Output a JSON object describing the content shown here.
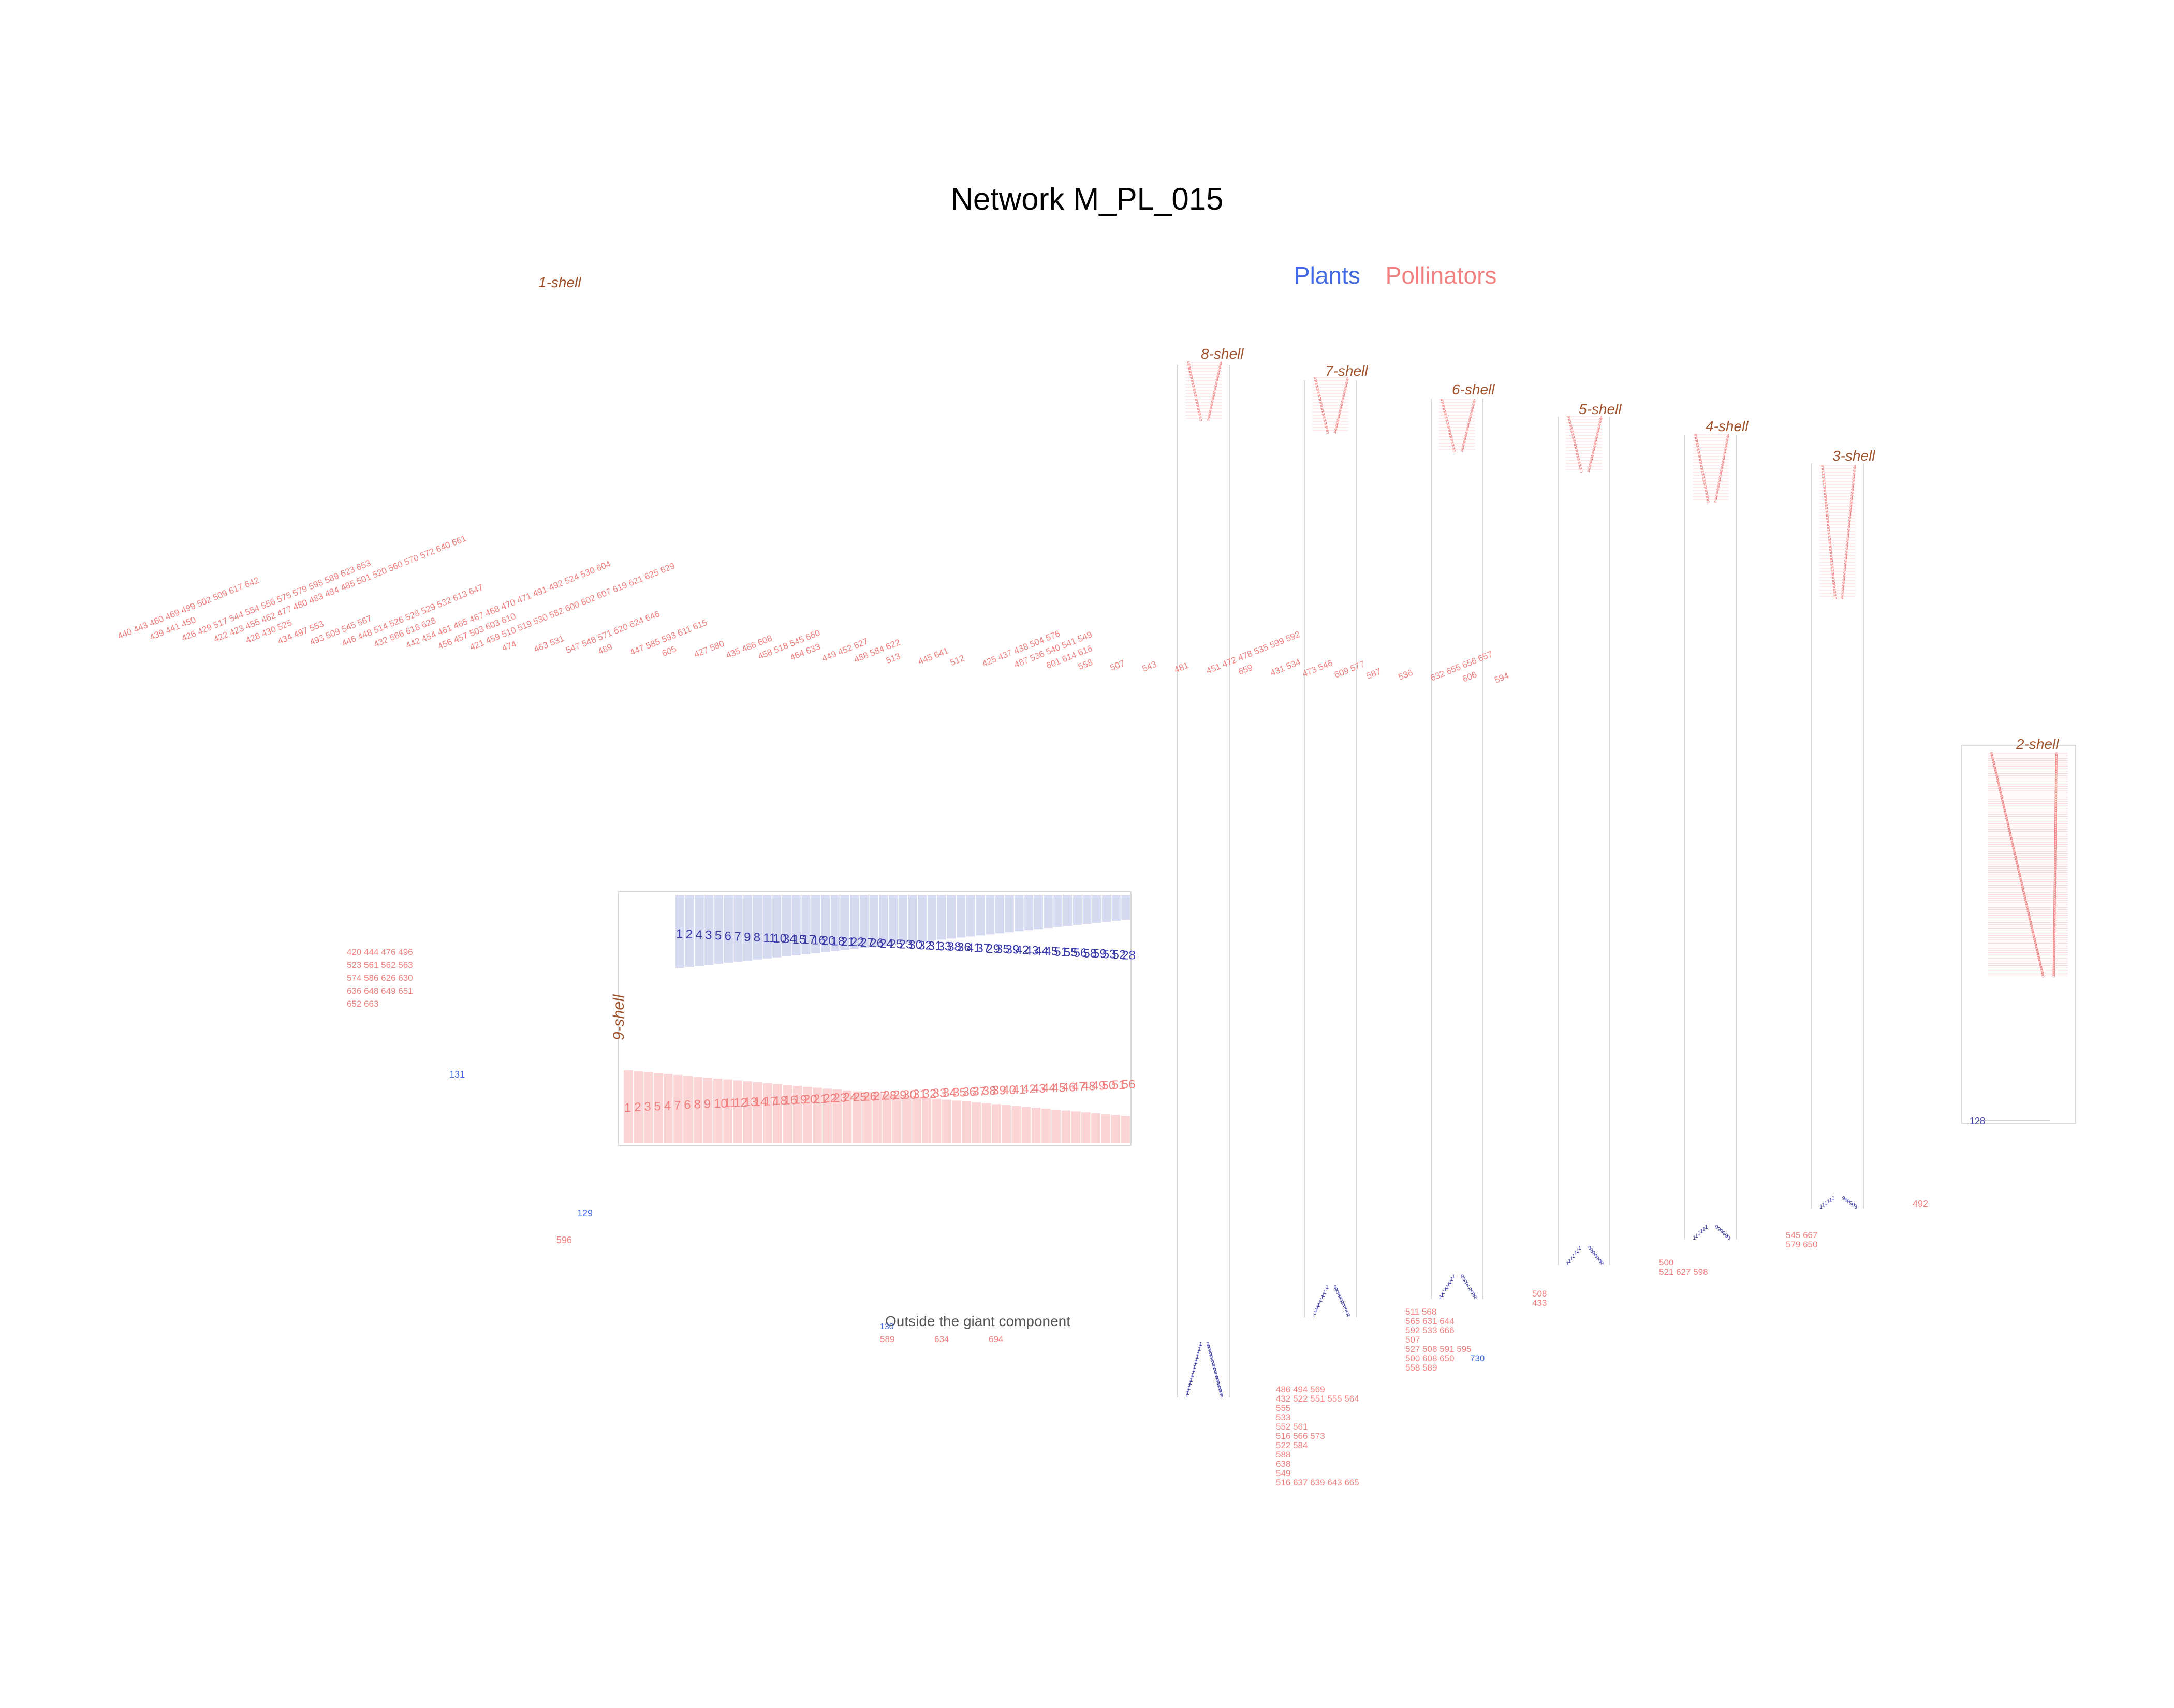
{
  "title": "Network M_PL_015",
  "legend": {
    "plants": "Plants",
    "pollinators": "Pollinators"
  },
  "colors": {
    "plant": "#3a3aa8",
    "plant_light": "#4169E1",
    "plant_fill": "#d6daf0",
    "pollinator": "#F08080",
    "pollinator_fill": "#fbd5d5",
    "shell_label": "#a0522d",
    "box_stroke": "#d9d9d9",
    "link": "#d0d0d0"
  },
  "shell_labels": {
    "k1": "1-shell",
    "k2": "2-shell",
    "k3": "3-shell",
    "k4": "4-shell",
    "k5": "5-shell",
    "k6": "6-shell",
    "k7": "7-shell",
    "k8": "8-shell",
    "k9": "9-shell"
  },
  "core": {
    "plants": [
      "1",
      "2",
      "4",
      "3",
      "5",
      "6",
      "7",
      "9",
      "8",
      "11",
      "10",
      "34",
      "15",
      "17",
      "16",
      "20",
      "18",
      "21",
      "22",
      "27",
      "26",
      "24",
      "25",
      "23",
      "30",
      "32",
      "31",
      "33",
      "38",
      "36",
      "41",
      "37",
      "29",
      "35",
      "39",
      "42",
      "43",
      "44",
      "45",
      "51",
      "55",
      "56",
      "58",
      "59",
      "53",
      "52",
      "28"
    ],
    "pollinators": [
      "1",
      "2",
      "3",
      "5",
      "4",
      "7",
      "6",
      "8",
      "9",
      "10",
      "11",
      "12",
      "13",
      "14",
      "17",
      "18",
      "16",
      "19",
      "20",
      "21",
      "22",
      "23",
      "24",
      "25",
      "26",
      "27",
      "28",
      "29",
      "30",
      "31",
      "32",
      "33",
      "34",
      "35",
      "36",
      "37",
      "38",
      "39",
      "40",
      "41",
      "42",
      "43",
      "44",
      "45",
      "46",
      "47",
      "48",
      "49",
      "50",
      "51",
      "56"
    ]
  },
  "k1_pollinator_groups": [
    "440 443 460 469 499 502 509 617 642",
    "439 441 450",
    "426 429 517 544 554 556 575 579 598 589 623 653",
    "422 423 455 462 477 480 483 484 485 501 520 560 570 572 640 661",
    "428 430 525",
    "434 497 553",
    "493 509 545 567",
    "446 448 514 526 528 529 532 613 647",
    "432 566 618 628",
    "442 454 461 465 467 468 470 471 491 492 524 530 604",
    "456 457 503 603 610",
    "421 459 510 519 530 582 600 602 607 619 621 625 629",
    "474",
    "463 531",
    "547 548 571 620 624 646",
    "489",
    "447 585 593 611 615",
    "605",
    "427 580",
    "435 486 608",
    "458 518 545 660",
    "464 633",
    "449 452 627",
    "488 584 622",
    "513",
    "445 641",
    "512",
    "425 437 438 504 576",
    "487 536 540 541 549",
    "601 614 616",
    "558",
    "507",
    "543",
    "481",
    "451 472 478 535 599 592",
    "659",
    "431 534",
    "473 546",
    "609 577",
    "587",
    "536",
    "632 655 656 657",
    "606",
    "594"
  ],
  "k1_left_block": [
    "420 444 476 496",
    "523 561 562 563",
    "574 586 626 630",
    "636 648 649 651",
    "652 663"
  ],
  "k1_misc": {
    "p131": "131",
    "p129": "129",
    "o596": "596",
    "o492": "492",
    "p128": "128",
    "p130": "130"
  },
  "outside": {
    "label": "Outside the giant component",
    "pollinators": [
      "589",
      "634",
      "694"
    ]
  },
  "side_pollinators": {
    "k7": [
      "486 494 569",
      "432 522 551 555 564",
      "555",
      "533",
      "552 561",
      "516 566 573",
      "522 584",
      "588",
      "638",
      "549",
      "516 637 639 643 665"
    ],
    "k6": [
      "511 568",
      "565 631 644",
      "592 533 666",
      "507",
      "527 508 591 595",
      "500 608 650",
      "558 589"
    ],
    "k5": [
      "508",
      "433"
    ],
    "k4": [
      "500",
      "521 627 598"
    ],
    "k3": [
      "545 667",
      "579 650"
    ]
  },
  "side_plants": {
    "k6": "730",
    "k2": "128"
  }
}
